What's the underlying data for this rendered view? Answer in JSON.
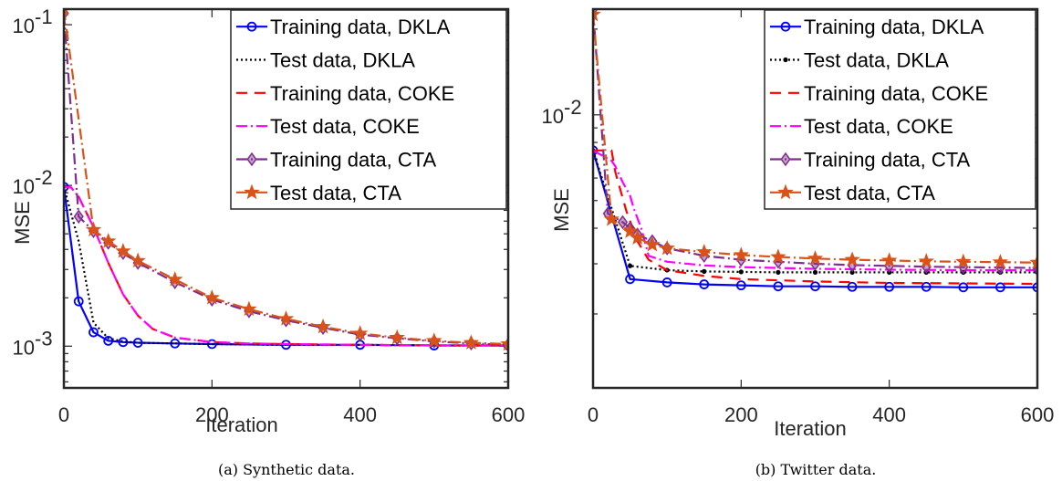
{
  "charts": [
    {
      "type": "line",
      "caption": "(a) Synthetic data.",
      "xlabel": "Iteration",
      "ylabel": "MSE",
      "xlim": [
        0,
        600
      ],
      "ylim": [
        0.00055,
        0.125
      ],
      "yscale": "log",
      "xticks": [
        "0",
        "200",
        "400",
        "600"
      ],
      "yticks": [
        {
          "base": "10",
          "exp": "-1"
        },
        {
          "base": "10",
          "exp": "-2"
        },
        {
          "base": "10",
          "exp": "-3"
        }
      ],
      "legend_position": "top-right",
      "series": [
        {
          "name": "Training data, DKLA",
          "color": "#0000ff",
          "dash": "",
          "marker": "circle",
          "x": [
            0,
            20,
            40,
            60,
            80,
            100,
            150,
            200,
            300,
            400,
            500,
            600
          ],
          "y": [
            0.0098,
            0.0019,
            0.00122,
            0.00108,
            0.00106,
            0.00105,
            0.00104,
            0.00103,
            0.00102,
            0.00102,
            0.00101,
            0.00101
          ]
        },
        {
          "name": "Test data, DKLA",
          "color": "#000000",
          "dash": "2,3",
          "marker": "none",
          "x": [
            0,
            20,
            40,
            60,
            80,
            100,
            150,
            200,
            300,
            400,
            500,
            600
          ],
          "y": [
            0.0098,
            0.0045,
            0.0014,
            0.00112,
            0.00107,
            0.00105,
            0.00104,
            0.00103,
            0.00102,
            0.00102,
            0.00101,
            0.00101
          ]
        },
        {
          "name": "Training data, COKE",
          "color": "#ff0000",
          "dash": "12,8",
          "marker": "none",
          "x": [
            0,
            10,
            20,
            40,
            60,
            80,
            100,
            120,
            150,
            200,
            250,
            300,
            400,
            500,
            600
          ],
          "y": [
            0.0098,
            0.0097,
            0.0085,
            0.0055,
            0.0033,
            0.0021,
            0.00155,
            0.00128,
            0.00113,
            0.00106,
            0.00104,
            0.00103,
            0.00102,
            0.00101,
            0.00101
          ]
        },
        {
          "name": "Test data, COKE",
          "color": "#ff00ff",
          "dash": "12,4,2,4",
          "marker": "none",
          "x": [
            0,
            10,
            20,
            40,
            60,
            80,
            100,
            120,
            150,
            200,
            250,
            300,
            400,
            500,
            600
          ],
          "y": [
            0.0098,
            0.0097,
            0.0085,
            0.0055,
            0.0033,
            0.0021,
            0.00155,
            0.00128,
            0.00113,
            0.00106,
            0.00104,
            0.00103,
            0.00102,
            0.00101,
            0.00101
          ]
        },
        {
          "name": "Training data, CTA",
          "color": "#7e2f8e",
          "dash": "12,4,2,4",
          "marker": "diamond",
          "x": [
            0,
            20,
            40,
            60,
            80,
            100,
            150,
            200,
            250,
            300,
            350,
            400,
            450,
            500,
            550,
            600
          ],
          "y": [
            0.118,
            0.0064,
            0.0052,
            0.0044,
            0.0038,
            0.0033,
            0.0025,
            0.00195,
            0.00165,
            0.00145,
            0.0013,
            0.00118,
            0.00112,
            0.00107,
            0.00104,
            0.00102
          ]
        },
        {
          "name": "Test data, CTA",
          "color": "#d95319",
          "dash": "12,4,2,4",
          "marker": "star",
          "x": [
            0,
            40,
            60,
            80,
            100,
            150,
            200,
            250,
            300,
            350,
            400,
            450,
            500,
            550,
            600
          ],
          "y": [
            0.125,
            0.0053,
            0.0045,
            0.0039,
            0.0034,
            0.0026,
            0.002,
            0.0017,
            0.00148,
            0.00132,
            0.0012,
            0.00113,
            0.00108,
            0.00105,
            0.00103
          ]
        }
      ]
    },
    {
      "type": "line",
      "caption": "(b) Twitter data.",
      "xlabel": "Iteration",
      "ylabel": "MSE",
      "xlim": [
        0,
        600
      ],
      "ylim": [
        0.0011,
        0.0235
      ],
      "yscale": "log",
      "xticks": [
        "0",
        "200",
        "400",
        "600"
      ],
      "yticks": [
        {
          "base": "10",
          "exp": "-2"
        }
      ],
      "legend_position": "top-right",
      "series": [
        {
          "name": "Training data, DKLA",
          "color": "#0000ff",
          "dash": "",
          "marker": "circle",
          "x": [
            0,
            50,
            100,
            150,
            200,
            250,
            300,
            350,
            400,
            450,
            500,
            550,
            600
          ],
          "y": [
            0.0075,
            0.00265,
            0.00258,
            0.00254,
            0.00252,
            0.0025,
            0.0025,
            0.00249,
            0.00249,
            0.00249,
            0.00248,
            0.00248,
            0.00248
          ]
        },
        {
          "name": "Test data, DKLA",
          "color": "#000000",
          "dash": "2,3",
          "marker": "dot",
          "x": [
            0,
            50,
            100,
            150,
            200,
            250,
            300,
            350,
            400,
            450,
            500,
            550,
            600
          ],
          "y": [
            0.0075,
            0.00295,
            0.00285,
            0.00282,
            0.00281,
            0.0028,
            0.0028,
            0.0028,
            0.0028,
            0.0028,
            0.0028,
            0.0028,
            0.0028
          ]
        },
        {
          "name": "Training data, COKE",
          "color": "#ff0000",
          "dash": "12,8",
          "marker": "none",
          "x": [
            0,
            25,
            30,
            45,
            60,
            75,
            100,
            150,
            200,
            300,
            400,
            500,
            600
          ],
          "y": [
            0.0075,
            0.0075,
            0.0063,
            0.0046,
            0.0036,
            0.0031,
            0.00285,
            0.00272,
            0.00265,
            0.0026,
            0.00257,
            0.00256,
            0.00255
          ]
        },
        {
          "name": "Test data, COKE",
          "color": "#ff00ff",
          "dash": "12,4,2,4",
          "marker": "none",
          "x": [
            0,
            25,
            30,
            40,
            50,
            55,
            65,
            75,
            100,
            150,
            200,
            300,
            400,
            500,
            600
          ],
          "y": [
            0.0075,
            0.0069,
            0.0066,
            0.0058,
            0.0052,
            0.0047,
            0.004,
            0.0032,
            0.00305,
            0.00296,
            0.00292,
            0.00288,
            0.00286,
            0.00285,
            0.00285
          ]
        },
        {
          "name": "Training data, CTA",
          "color": "#7e2f8e",
          "dash": "12,4,2,4",
          "marker": "diamond",
          "x": [
            0,
            20,
            40,
            50,
            60,
            80,
            100,
            150,
            200,
            250,
            300,
            350,
            400,
            450,
            500,
            550,
            600
          ],
          "y": [
            0.0235,
            0.0045,
            0.0042,
            0.004,
            0.0038,
            0.0036,
            0.0034,
            0.0032,
            0.0031,
            0.00305,
            0.003,
            0.00297,
            0.00295,
            0.00293,
            0.00292,
            0.00291,
            0.0029
          ]
        },
        {
          "name": "Test data, CTA",
          "color": "#d95319",
          "dash": "12,4,2,4",
          "marker": "star",
          "x": [
            0,
            25,
            50,
            60,
            80,
            100,
            150,
            200,
            250,
            300,
            350,
            400,
            450,
            500,
            550,
            600
          ],
          "y": [
            0.0225,
            0.0043,
            0.0039,
            0.0037,
            0.0035,
            0.0034,
            0.0033,
            0.00322,
            0.00317,
            0.00313,
            0.0031,
            0.00308,
            0.00306,
            0.00305,
            0.00304,
            0.00303
          ]
        }
      ]
    }
  ]
}
